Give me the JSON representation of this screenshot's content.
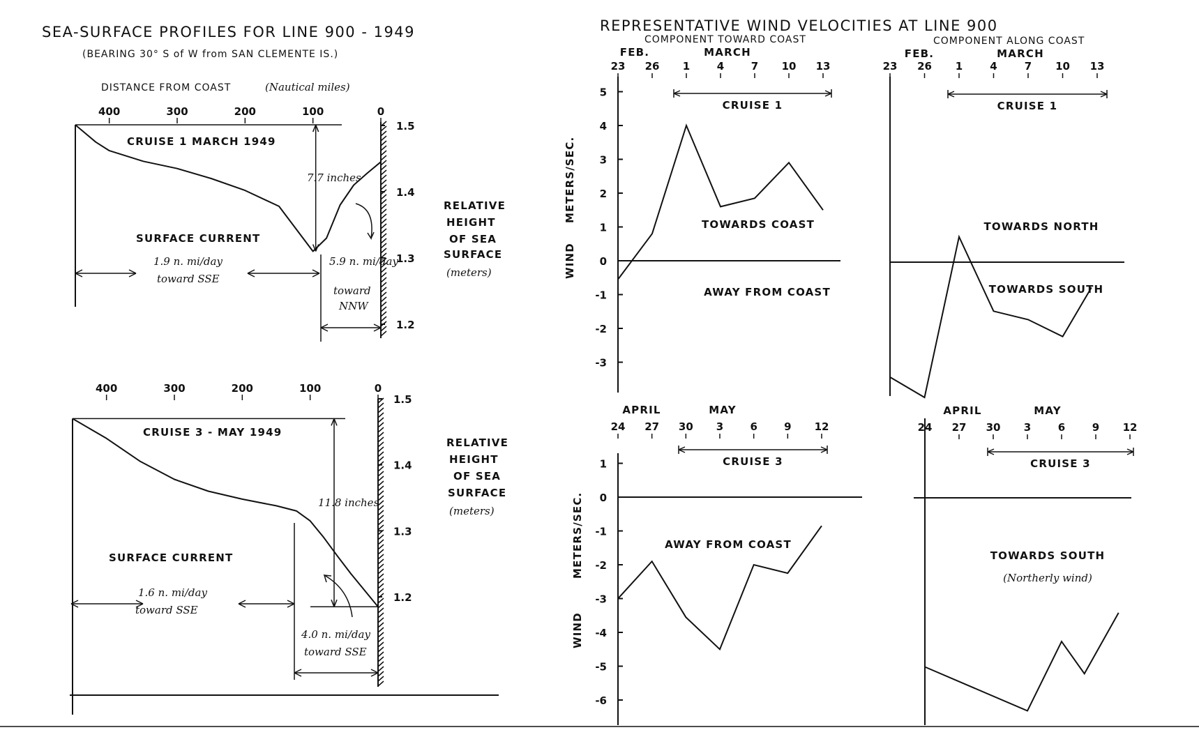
{
  "left": {
    "title": "SEA-SURFACE PROFILES FOR LINE 900 - 1949",
    "subtitle": "(BEARING 30° S of W from SAN CLEMENTE IS.)",
    "distance_label": "DISTANCE FROM COAST",
    "distance_unit": "(Nautical miles)",
    "right_label": [
      "RELATIVE",
      "HEIGHT",
      "OF SEA",
      "SURFACE"
    ],
    "right_unit": "(meters)"
  },
  "right": {
    "title": "REPRESENTATIVE WIND VELOCITIES AT LINE 900",
    "col1": "COMPONENT TOWARD COAST",
    "col2": "COMPONENT ALONG COAST",
    "ylabel_wind": "WIND",
    "ylabel_unit": "METERS/SEC."
  },
  "chart_data": [
    {
      "type": "line",
      "title": "CRUISE 1    MARCH 1949",
      "x_ticks": [
        "400",
        "300",
        "200",
        "100",
        "0"
      ],
      "y_ticks": [
        "1.5",
        "1.4",
        "1.3",
        "1.2"
      ],
      "ylim": [
        1.2,
        1.5
      ],
      "xlim": [
        450,
        0
      ],
      "series": [
        {
          "x": [
            450,
            420,
            400,
            350,
            300,
            250,
            200,
            150,
            100,
            80,
            60,
            40,
            20,
            0
          ],
          "y": [
            1.501,
            1.475,
            1.462,
            1.446,
            1.435,
            1.42,
            1.402,
            1.378,
            1.31,
            1.33,
            1.38,
            1.41,
            1.428,
            1.445
          ]
        }
      ],
      "annotations": {
        "difference": "7.7 inches",
        "offshore_label": "SURFACE CURRENT",
        "offshore_speed": "1.9 n. mi/day",
        "offshore_dir": "toward SSE",
        "inshore_speed": "5.9 n. mi/day",
        "inshore_dir": "toward",
        "inshore_dir2": "NNW"
      }
    },
    {
      "type": "line",
      "title": "CRUISE 3 - MAY 1949",
      "x_ticks": [
        "400",
        "300",
        "200",
        "100",
        "0"
      ],
      "y_ticks": [
        "1.5",
        "1.4",
        "1.3",
        "1.2"
      ],
      "ylim": [
        1.2,
        1.5
      ],
      "xlim": [
        450,
        0
      ],
      "series": [
        {
          "x": [
            450,
            400,
            350,
            300,
            250,
            200,
            150,
            120,
            100,
            80,
            60,
            40,
            20,
            0
          ],
          "y": [
            1.47,
            1.44,
            1.405,
            1.378,
            1.36,
            1.348,
            1.338,
            1.33,
            1.315,
            1.29,
            1.262,
            1.235,
            1.21,
            1.185
          ]
        }
      ],
      "annotations": {
        "difference": "11.8 inches",
        "offshore_label": "SURFACE CURRENT",
        "offshore_speed": "1.6 n. mi/day",
        "offshore_dir": "toward SSE",
        "inshore_speed": "4.0 n. mi/day",
        "inshore_dir": "toward SSE"
      }
    },
    {
      "type": "line",
      "months": [
        "FEB.",
        "MARCH"
      ],
      "x": [
        23,
        26,
        29,
        32,
        35,
        38,
        41
      ],
      "x_tick_labels": [
        "23",
        "26",
        "1",
        "4",
        "7",
        "10",
        "13"
      ],
      "y_ticks": [
        "5",
        "4",
        "3",
        "2",
        "1",
        "0",
        "-1",
        "-2",
        "-3"
      ],
      "ylim": [
        -4,
        5
      ],
      "cruise_label": "CRUISE 1",
      "above_label": "TOWARDS COAST",
      "below_label": "AWAY FROM COAST",
      "series": [
        {
          "x": [
            23,
            26,
            29,
            32,
            35,
            38,
            41
          ],
          "y": [
            -0.55,
            0.8,
            4.0,
            1.6,
            1.85,
            2.9,
            1.5
          ]
        }
      ]
    },
    {
      "type": "line",
      "months": [
        "FEB.",
        "MARCH"
      ],
      "x": [
        23,
        26,
        29,
        32,
        35,
        38,
        41
      ],
      "x_tick_labels": [
        "23",
        "26",
        "1",
        "4",
        "7",
        "10",
        "13"
      ],
      "ylim": [
        -4,
        5
      ],
      "cruise_label": "CRUISE 1",
      "above_label": "TOWARDS NORTH",
      "below_label": "TOWARDS SOUTH",
      "series": [
        {
          "x": [
            23,
            26,
            29,
            32,
            35,
            38,
            40.5
          ],
          "y": [
            -3.4,
            -4.0,
            0.75,
            -1.45,
            -1.7,
            -2.2,
            -0.75
          ]
        }
      ]
    },
    {
      "type": "line",
      "months": [
        "APRIL",
        "MAY"
      ],
      "x": [
        24,
        27,
        30,
        33,
        36,
        39,
        42
      ],
      "x_tick_labels": [
        "24",
        "27",
        "30",
        "3",
        "6",
        "9",
        "12"
      ],
      "y_ticks": [
        "1",
        "0",
        "-1",
        "-2",
        "-3",
        "-4",
        "-5",
        "-6"
      ],
      "ylim": [
        -7,
        2
      ],
      "cruise_label": "CRUISE 3",
      "below_label": "AWAY FROM COAST",
      "series": [
        {
          "x": [
            24,
            27,
            30,
            33,
            36,
            39,
            42
          ],
          "y": [
            -3.0,
            -1.9,
            -3.55,
            -4.5,
            -2.0,
            -2.25,
            -0.85
          ]
        }
      ]
    },
    {
      "type": "line",
      "months": [
        "APRIL",
        "MAY"
      ],
      "x": [
        24,
        27,
        30,
        33,
        36,
        39,
        42
      ],
      "x_tick_labels": [
        "24",
        "27",
        "30",
        "3",
        "6",
        "9",
        "12"
      ],
      "ylim": [
        -7,
        2
      ],
      "cruise_label": "CRUISE 3",
      "below_label": "TOWARDS SOUTH",
      "below_note": "(Northerly wind)",
      "series": [
        {
          "x": [
            24,
            33,
            36,
            38,
            41
          ],
          "y": [
            -5.0,
            -6.3,
            -4.25,
            -5.2,
            -3.4
          ]
        }
      ]
    }
  ]
}
